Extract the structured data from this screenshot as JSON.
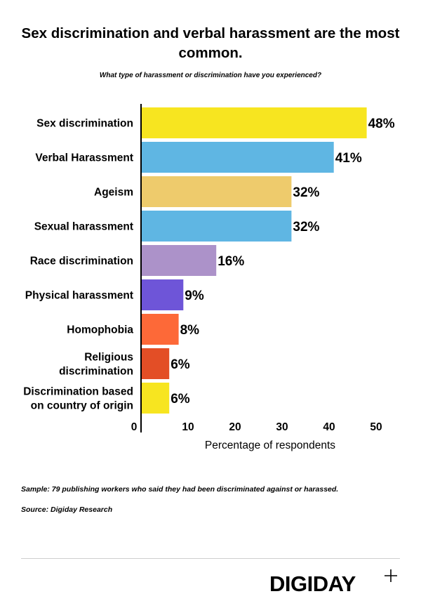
{
  "title": "Sex discrimination and verbal harassment are the most common.",
  "subtitle": "What type of harassment or discrimination have you experienced?",
  "chart_data": {
    "type": "bar",
    "orientation": "horizontal",
    "categories": [
      [
        "Sex discrimination"
      ],
      [
        "Verbal Harassment"
      ],
      [
        "Ageism"
      ],
      [
        "Sexual harassment"
      ],
      [
        "Race discrimination"
      ],
      [
        "Physical harassment"
      ],
      [
        "Homophobia"
      ],
      [
        "Religious",
        "discrimination"
      ],
      [
        "Discrimination based",
        "on country of origin"
      ]
    ],
    "values": [
      48,
      41,
      32,
      32,
      16,
      9,
      8,
      6,
      6
    ],
    "value_labels": [
      "48%",
      "41%",
      "32%",
      "32%",
      "16%",
      "9%",
      "8%",
      "6%",
      "6%"
    ],
    "colors": [
      "#f7e520",
      "#5fb6e3",
      "#eecb6c",
      "#5fb6e3",
      "#ac92c9",
      "#6e55d8",
      "#fd6938",
      "#e34e26",
      "#f7e520"
    ],
    "xlim": [
      0,
      55
    ],
    "xticks": [
      0,
      10,
      20,
      30,
      40,
      50
    ],
    "xlabel": "Percentage of respondents",
    "ylabel": "",
    "grid": false,
    "legend": "none"
  },
  "footer": {
    "sample": "Sample: 79 publishing workers who said they had been discriminated against or harassed.",
    "source": "Source: Digiday Research"
  },
  "logo": {
    "text": "DIGIDAY",
    "icon": "plus-icon"
  }
}
